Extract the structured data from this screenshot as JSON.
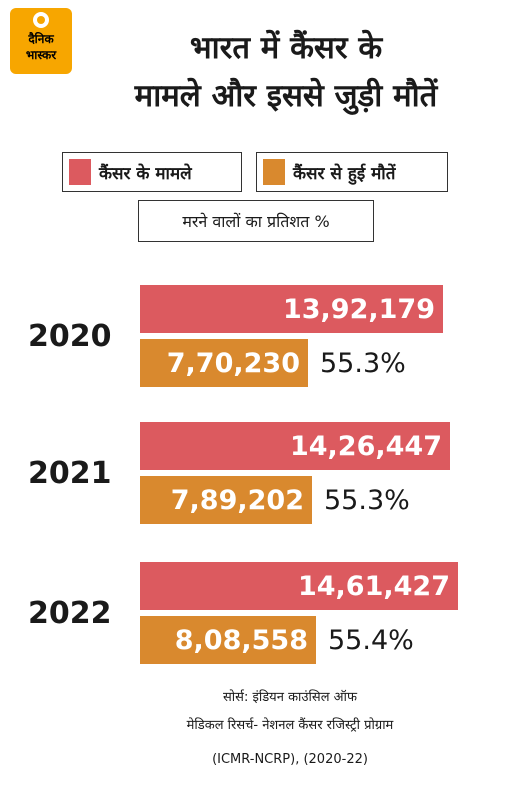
{
  "brand": {
    "line1": "दैनिक",
    "line2": "भास्कर"
  },
  "title": {
    "line1": "भारत में कैंसर के",
    "line2": "मामले और इससे जुड़ी मौतें"
  },
  "colors": {
    "cases": "#dc5a5f",
    "deaths": "#d9892e"
  },
  "chart_data": {
    "type": "bar",
    "categories": [
      "2020",
      "2021",
      "2022"
    ],
    "series": [
      {
        "name": "कैंसर के मामले",
        "values": [
          1392179,
          1426447,
          1461427
        ],
        "labels": [
          "13,92,179",
          "14,26,447",
          "14,61,427"
        ]
      },
      {
        "name": "कैंसर से हुई मौतें",
        "values": [
          770230,
          789202,
          808558
        ],
        "labels": [
          "7,70,230",
          "7,89,202",
          "8,08,558"
        ]
      }
    ],
    "percent_label": "मरने वालों का प्रतिशत %",
    "percent": [
      "55.3%",
      "55.3%",
      "55.4%"
    ]
  },
  "source": {
    "line1": "सोर्स: इंडियन काउंसिल ऑफ",
    "line2": "मेडिकल रिसर्च- नेशनल कैंसर रजिस्ट्री प्रोग्राम",
    "line3": "(ICMR-NCRP), (2020-22)"
  }
}
